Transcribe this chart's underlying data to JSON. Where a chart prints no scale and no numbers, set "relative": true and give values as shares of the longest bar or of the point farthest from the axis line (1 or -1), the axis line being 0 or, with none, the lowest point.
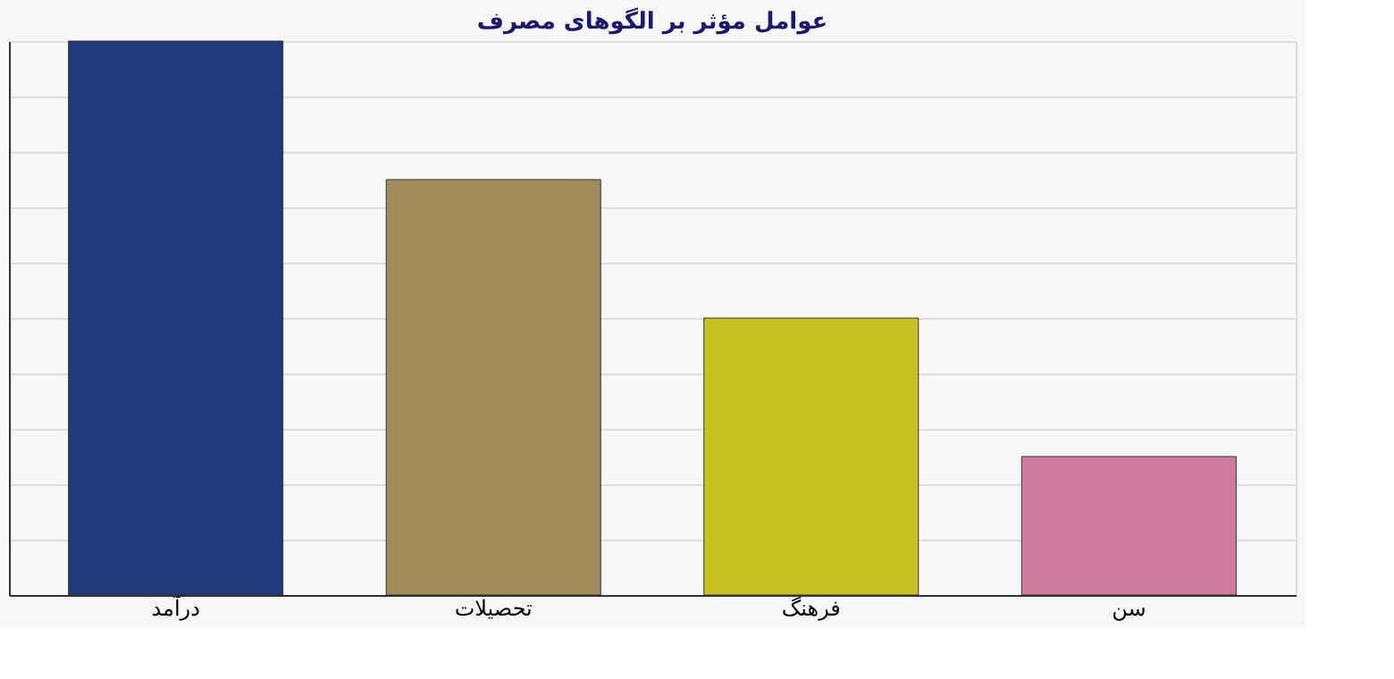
{
  "chart_data": {
    "type": "bar",
    "title": "عوامل مؤثر بر الگوهای مصرف",
    "relative": true,
    "grid": "y",
    "categories": [
      "درآمد",
      "تحصیلات",
      "فرهنگ",
      "سن"
    ],
    "values": [
      1,
      0.75,
      0.5,
      0.25
    ],
    "colors": [
      "#1f3a78",
      "#a08a5a",
      "#c8c01e",
      "#d07a9c"
    ]
  }
}
